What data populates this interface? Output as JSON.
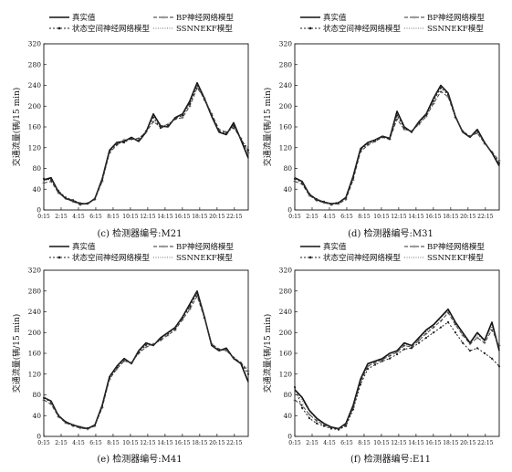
{
  "legend_labels": [
    "真实值",
    "BP神经网络模型",
    "状态空间神经网络模型",
    "SSNNEKF模型"
  ],
  "chart_data": [
    {
      "type": "line",
      "caption": "(c) 检测器编号:M21",
      "ylabel": "交通流量(辆/15 min)",
      "ylim": [
        0,
        320
      ],
      "yticks": [
        0,
        40,
        80,
        120,
        160,
        200,
        240,
        280,
        320
      ],
      "xticklabels": [
        "0:15",
        "2:15",
        "4:15",
        "6:15",
        "8:15",
        "10:15",
        "12:15",
        "14:15",
        "16:15",
        "18:15",
        "20:15",
        "22:15"
      ],
      "legend": "top",
      "series": [
        {
          "name": "真实值",
          "values": [
            58,
            62,
            35,
            22,
            18,
            12,
            12,
            22,
            60,
            115,
            130,
            132,
            140,
            132,
            150,
            185,
            162,
            160,
            178,
            185,
            210,
            245,
            215,
            180,
            150,
            145,
            168,
            135,
            100
          ]
        },
        {
          "name": "BP神经网络模型",
          "values": [
            52,
            55,
            33,
            22,
            16,
            10,
            12,
            20,
            55,
            110,
            125,
            135,
            136,
            138,
            150,
            170,
            160,
            165,
            175,
            178,
            200,
            235,
            215,
            185,
            155,
            150,
            158,
            138,
            110
          ]
        },
        {
          "name": "状态空间神经网络模型",
          "values": [
            60,
            58,
            37,
            24,
            19,
            13,
            13,
            22,
            58,
            112,
            128,
            130,
            138,
            134,
            152,
            178,
            158,
            162,
            176,
            182,
            205,
            240,
            212,
            182,
            152,
            148,
            162,
            136,
            115
          ]
        },
        {
          "name": "SSNNEKF模型",
          "values": [
            56,
            60,
            36,
            23,
            18,
            12,
            12,
            21,
            58,
            114,
            129,
            131,
            139,
            133,
            151,
            182,
            160,
            161,
            177,
            184,
            208,
            243,
            214,
            181,
            151,
            146,
            165,
            135,
            120
          ]
        }
      ]
    },
    {
      "type": "line",
      "caption": "(d) 检测器编号:M31",
      "ylabel": "交通流量(辆/15 min)",
      "ylim": [
        0,
        320
      ],
      "yticks": [
        0,
        40,
        80,
        120,
        160,
        200,
        240,
        280,
        320
      ],
      "xticklabels": [
        "0:15",
        "2:15",
        "4:15",
        "6:15",
        "8:15",
        "10:15",
        "12:15",
        "14:15",
        "16:15",
        "18:15",
        "20:15",
        "22:15"
      ],
      "legend": "top",
      "series": [
        {
          "name": "真实值",
          "values": [
            62,
            55,
            30,
            20,
            15,
            12,
            14,
            24,
            65,
            118,
            130,
            135,
            142,
            138,
            190,
            160,
            150,
            170,
            185,
            215,
            240,
            225,
            180,
            150,
            140,
            155,
            130,
            110,
            85
          ]
        },
        {
          "name": "BP神经网络模型",
          "values": [
            55,
            50,
            28,
            18,
            14,
            10,
            12,
            20,
            58,
            112,
            125,
            132,
            140,
            136,
            175,
            155,
            152,
            165,
            180,
            205,
            228,
            218,
            178,
            152,
            142,
            148,
            128,
            112,
            95
          ]
        },
        {
          "name": "状态空间神经网络模型",
          "values": [
            60,
            53,
            31,
            21,
            16,
            12,
            14,
            23,
            62,
            115,
            128,
            134,
            141,
            137,
            182,
            158,
            150,
            168,
            183,
            210,
            235,
            222,
            179,
            151,
            141,
            152,
            129,
            111,
            90
          ]
        },
        {
          "name": "SSNNEKF模型",
          "values": [
            61,
            54,
            30,
            20,
            15,
            12,
            14,
            24,
            64,
            117,
            129,
            135,
            142,
            138,
            186,
            159,
            151,
            169,
            184,
            212,
            238,
            224,
            180,
            150,
            140,
            153,
            130,
            110,
            88
          ]
        }
      ]
    },
    {
      "type": "line",
      "caption": "(e) 检测器编号:M41",
      "ylabel": "交通流量(辆/15 min)",
      "ylim": [
        0,
        320
      ],
      "yticks": [
        0,
        40,
        80,
        120,
        160,
        200,
        240,
        280,
        320
      ],
      "xticklabels": [
        "0:15",
        "2:15",
        "4:15",
        "6:15",
        "8:15",
        "10:15",
        "12:15",
        "14:15",
        "16:15",
        "18:15",
        "20:15",
        "22:15"
      ],
      "legend": "top",
      "series": [
        {
          "name": "真实值",
          "values": [
            75,
            68,
            40,
            28,
            22,
            18,
            15,
            22,
            60,
            115,
            135,
            150,
            140,
            165,
            180,
            175,
            190,
            200,
            210,
            230,
            255,
            280,
            230,
            175,
            165,
            170,
            150,
            140,
            105
          ]
        },
        {
          "name": "BP神经网络模型",
          "values": [
            70,
            62,
            38,
            26,
            20,
            16,
            14,
            20,
            55,
            110,
            130,
            145,
            142,
            160,
            172,
            178,
            185,
            195,
            205,
            225,
            245,
            270,
            228,
            178,
            168,
            165,
            152,
            142,
            125
          ]
        },
        {
          "name": "状态空间神经网络模型",
          "values": [
            74,
            66,
            41,
            28,
            22,
            18,
            16,
            22,
            58,
            112,
            133,
            148,
            141,
            162,
            176,
            176,
            188,
            198,
            208,
            228,
            250,
            275,
            229,
            176,
            166,
            168,
            151,
            141,
            120
          ]
        },
        {
          "name": "SSNNEKF模型",
          "values": [
            75,
            67,
            40,
            28,
            22,
            18,
            15,
            22,
            59,
            114,
            134,
            149,
            140,
            164,
            178,
            175,
            189,
            199,
            209,
            229,
            253,
            278,
            230,
            175,
            165,
            169,
            150,
            140,
            130
          ]
        }
      ]
    },
    {
      "type": "line",
      "caption": "(f) 检测器编号:E11",
      "ylabel": "交通流量(辆/15 min)",
      "ylim": [
        0,
        320
      ],
      "yticks": [
        0,
        40,
        80,
        120,
        160,
        200,
        240,
        280,
        320
      ],
      "xticklabels": [
        "0:15",
        "2:15",
        "4:15",
        "6:15",
        "8:15",
        "10:15",
        "12:15",
        "14:15",
        "16:15",
        "18:15",
        "20:15",
        "22:15"
      ],
      "legend": "top",
      "series": [
        {
          "name": "真实值",
          "values": [
            90,
            75,
            50,
            35,
            25,
            18,
            15,
            25,
            60,
            110,
            140,
            145,
            150,
            160,
            165,
            180,
            175,
            190,
            205,
            215,
            230,
            245,
            220,
            200,
            180,
            200,
            185,
            220,
            165
          ]
        },
        {
          "name": "BP神经网络模型",
          "values": [
            70,
            60,
            42,
            30,
            22,
            16,
            14,
            22,
            55,
            105,
            135,
            142,
            148,
            155,
            162,
            175,
            172,
            185,
            198,
            210,
            222,
            238,
            215,
            195,
            178,
            190,
            180,
            205,
            175
          ]
        },
        {
          "name": "状态空间神经网络模型",
          "values": [
            95,
            55,
            35,
            25,
            20,
            15,
            13,
            20,
            52,
            100,
            130,
            138,
            145,
            150,
            158,
            168,
            170,
            180,
            190,
            200,
            210,
            220,
            200,
            180,
            165,
            170,
            160,
            150,
            135
          ]
        },
        {
          "name": "SSNNEKF模型",
          "values": [
            85,
            70,
            48,
            33,
            24,
            17,
            15,
            24,
            58,
            108,
            138,
            144,
            149,
            158,
            164,
            178,
            174,
            188,
            202,
            213,
            228,
            242,
            218,
            198,
            179,
            196,
            183,
            212,
            170
          ]
        }
      ]
    }
  ]
}
